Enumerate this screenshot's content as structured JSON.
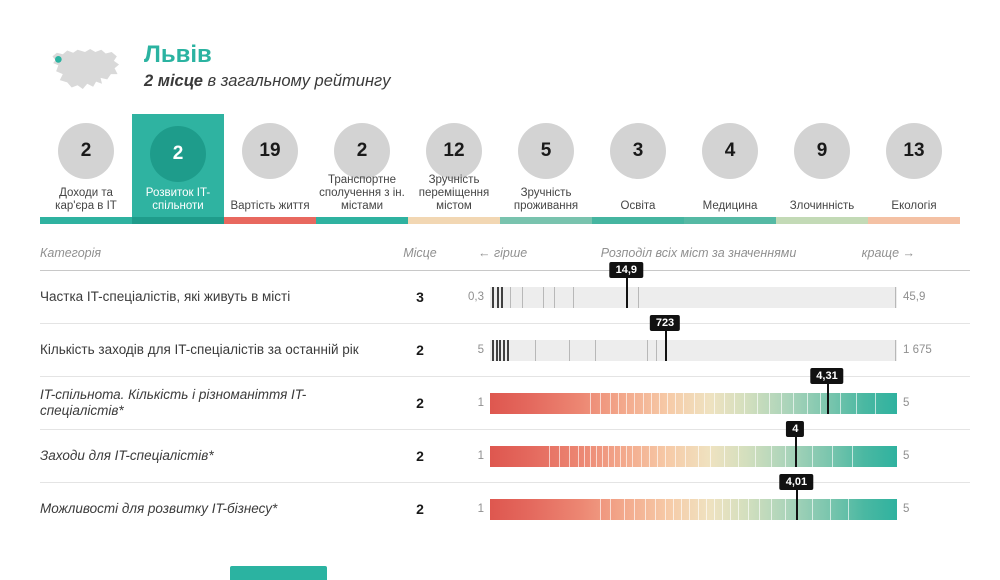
{
  "header": {
    "city": "Львів",
    "rank_bold": "2 місце",
    "rank_rest": " в загальному рейтингу",
    "accent_color": "#2bb3a1",
    "icon": "ukraine-map-icon"
  },
  "categories": [
    {
      "rank": "2",
      "label": "Доходи та кар'єра в IT",
      "strip": "#2fb2a0",
      "selected": false
    },
    {
      "rank": "2",
      "label": "Розвиток IT-спільноти",
      "strip": "#1f9c8b",
      "selected": true
    },
    {
      "rank": "19",
      "label": "Вартість життя",
      "strip": "#e8685f",
      "selected": false
    },
    {
      "rank": "2",
      "label": "Транспортне сполучення з ін. містами",
      "strip": "#2fb2a0",
      "selected": false
    },
    {
      "rank": "12",
      "label": "Зручність переміщення містом",
      "strip": "#f2d7b3",
      "selected": false
    },
    {
      "rank": "5",
      "label": "Зручність проживання",
      "strip": "#79c3ae",
      "selected": false
    },
    {
      "rank": "3",
      "label": "Освіта",
      "strip": "#45b5a0",
      "selected": false
    },
    {
      "rank": "4",
      "label": "Медицина",
      "strip": "#55b9a4",
      "selected": false
    },
    {
      "rank": "9",
      "label": "Злочинність",
      "strip": "#c3dab6",
      "selected": false
    },
    {
      "rank": "13",
      "label": "Екологія",
      "strip": "#f4c1a4",
      "selected": false
    }
  ],
  "table": {
    "headers": {
      "category": "Категорія",
      "place": "Місце",
      "worse": "← гірше",
      "distribution": "Розподіл всіх міст за значеннями",
      "better": "краще →"
    },
    "rows": [
      {
        "name": "Частка IT-спеціалістів, які живуть в місті",
        "italic": false,
        "place": "3",
        "min": "0,3",
        "max": "45,9",
        "value": "14,9",
        "value_pct": 33.5,
        "bar": "gray",
        "ticks_dark": [
          0.6,
          1.6,
          2.7
        ],
        "ticks_light": [
          4.8,
          7.8,
          13,
          15.8,
          20.5,
          36.3,
          99.5
        ]
      },
      {
        "name": "Кількість заходів для IT-спеціалістів за останній рік",
        "italic": false,
        "place": "2",
        "min": "5",
        "max": "1 675",
        "value": "723",
        "value_pct": 43,
        "bar": "gray",
        "ticks_dark": [
          0.5,
          1.4,
          2.3,
          3.2,
          4.1
        ],
        "ticks_light": [
          11,
          19.5,
          25.8,
          38.5,
          40.8,
          99.5
        ]
      },
      {
        "name": "IT-спільнота. Кількість і різноманіття IT-спеціалістів*",
        "italic": true,
        "place": "2",
        "min": "1",
        "max": "5",
        "value": "4,31",
        "value_pct": 82.8,
        "bar": "gradient",
        "ticks_dark": [],
        "ticks_light": [
          24.5,
          27,
          29.5,
          31.5,
          33.5,
          35.5,
          37.5,
          39.5,
          41.5,
          43.5,
          45.5,
          47.5,
          50,
          52.5,
          55,
          57.5,
          60,
          62.5,
          65.5,
          68.5,
          71.5,
          74.5,
          78,
          81,
          86,
          90,
          94.5
        ]
      },
      {
        "name": "Заходи для IT-спеціалістів*",
        "italic": true,
        "place": "2",
        "min": "1",
        "max": "5",
        "value": "4",
        "value_pct": 75,
        "bar": "gradient",
        "ticks_dark": [],
        "ticks_light": [
          14.5,
          17,
          19.5,
          21.5,
          23,
          24.5,
          26,
          27.5,
          29,
          30.5,
          32,
          33.5,
          35,
          37,
          39,
          41,
          43,
          45.5,
          48,
          51,
          54,
          57.5,
          61,
          65,
          69,
          72.5,
          79,
          84,
          89
        ]
      },
      {
        "name": "Можливості для розвитку IT-бізнесу*",
        "italic": true,
        "place": "2",
        "min": "1",
        "max": "5",
        "value": "4,01",
        "value_pct": 75.3,
        "bar": "gradient",
        "ticks_dark": [],
        "ticks_light": [
          27,
          29.5,
          33,
          35.5,
          38,
          40.5,
          43,
          45,
          47,
          49,
          51,
          53,
          55,
          57,
          59,
          61,
          63.5,
          66,
          69,
          72.5,
          79,
          83.5,
          88
        ]
      }
    ]
  },
  "footer": {
    "button_color": "#2bb3a1"
  }
}
